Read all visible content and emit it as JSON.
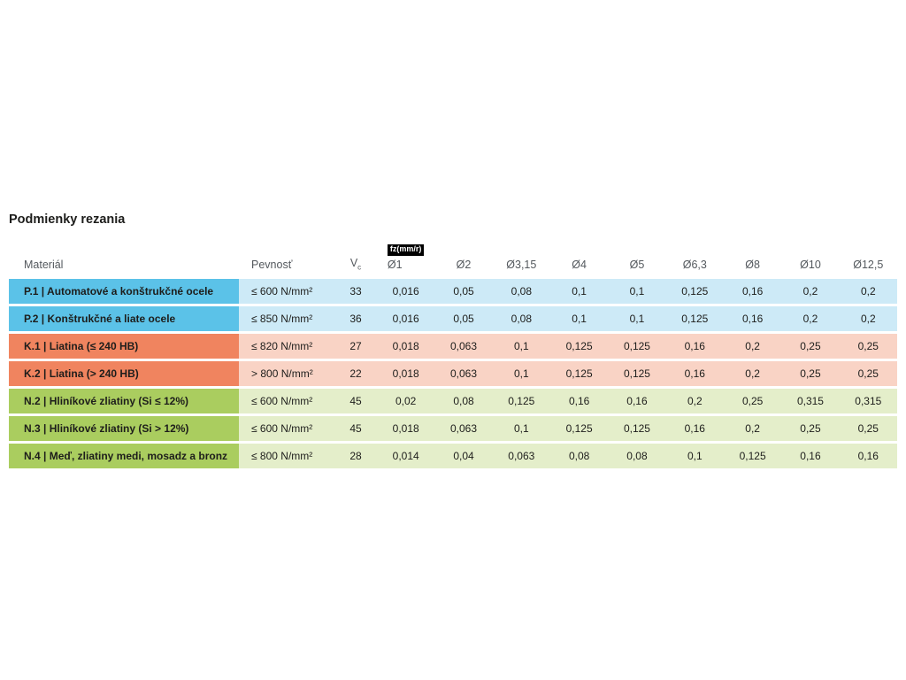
{
  "page": {
    "title": "Podmienky rezania"
  },
  "colors": {
    "groups": {
      "P": {
        "dark": "#5bc2e8",
        "light": "#cdeaf7"
      },
      "K": {
        "dark": "#f0845f",
        "light": "#f9d3c5"
      },
      "N": {
        "dark": "#aacd5f",
        "light": "#e4eeca"
      }
    },
    "badge_bg": "#000000",
    "badge_text": "#ffffff",
    "header_text": "#54595e",
    "body_text": "#1d1d1b"
  },
  "table": {
    "headers": {
      "material": "Materiál",
      "pevnost": "Pevnosť",
      "vc_main": "V",
      "vc_sub": "c",
      "fz_badge": "fz(mm/r)",
      "diameters": [
        "Ø1",
        "Ø2",
        "Ø3,15",
        "Ø4",
        "Ø5",
        "Ø6,3",
        "Ø8",
        "Ø10",
        "Ø12,5"
      ]
    },
    "rows": [
      {
        "group": "P",
        "material": "P.1 | Automatové a konštrukčné ocele",
        "pevnost": "≤ 600 N/mm²",
        "vc": "33",
        "values": [
          "0,016",
          "0,05",
          "0,08",
          "0,1",
          "0,1",
          "0,125",
          "0,16",
          "0,2",
          "0,2"
        ]
      },
      {
        "group": "P",
        "material": "P.2 | Konštrukčné a liate ocele",
        "pevnost": "≤ 850 N/mm²",
        "vc": "36",
        "values": [
          "0,016",
          "0,05",
          "0,08",
          "0,1",
          "0,1",
          "0,125",
          "0,16",
          "0,2",
          "0,2"
        ]
      },
      {
        "group": "K",
        "material": "K.1 | Liatina (≤ 240 HB)",
        "pevnost": "≤ 820 N/mm²",
        "vc": "27",
        "values": [
          "0,018",
          "0,063",
          "0,1",
          "0,125",
          "0,125",
          "0,16",
          "0,2",
          "0,25",
          "0,25"
        ]
      },
      {
        "group": "K",
        "material": "K.2 | Liatina (> 240 HB)",
        "pevnost": "> 800 N/mm²",
        "vc": "22",
        "values": [
          "0,018",
          "0,063",
          "0,1",
          "0,125",
          "0,125",
          "0,16",
          "0,2",
          "0,25",
          "0,25"
        ]
      },
      {
        "group": "N",
        "material": "N.2 | Hliníkové zliatiny (Si ≤ 12%)",
        "pevnost": "≤ 600 N/mm²",
        "vc": "45",
        "values": [
          "0,02",
          "0,08",
          "0,125",
          "0,16",
          "0,16",
          "0,2",
          "0,25",
          "0,315",
          "0,315"
        ]
      },
      {
        "group": "N",
        "material": "N.3 | Hliníkové zliatiny (Si > 12%)",
        "pevnost": "≤ 600 N/mm²",
        "vc": "45",
        "values": [
          "0,018",
          "0,063",
          "0,1",
          "0,125",
          "0,125",
          "0,16",
          "0,2",
          "0,25",
          "0,25"
        ]
      },
      {
        "group": "N",
        "material": "N.4 | Meď, zliatiny medi, mosadz a bronz",
        "pevnost": "≤ 800 N/mm²",
        "vc": "28",
        "values": [
          "0,014",
          "0,04",
          "0,063",
          "0,08",
          "0,08",
          "0,1",
          "0,125",
          "0,16",
          "0,16"
        ]
      }
    ]
  }
}
